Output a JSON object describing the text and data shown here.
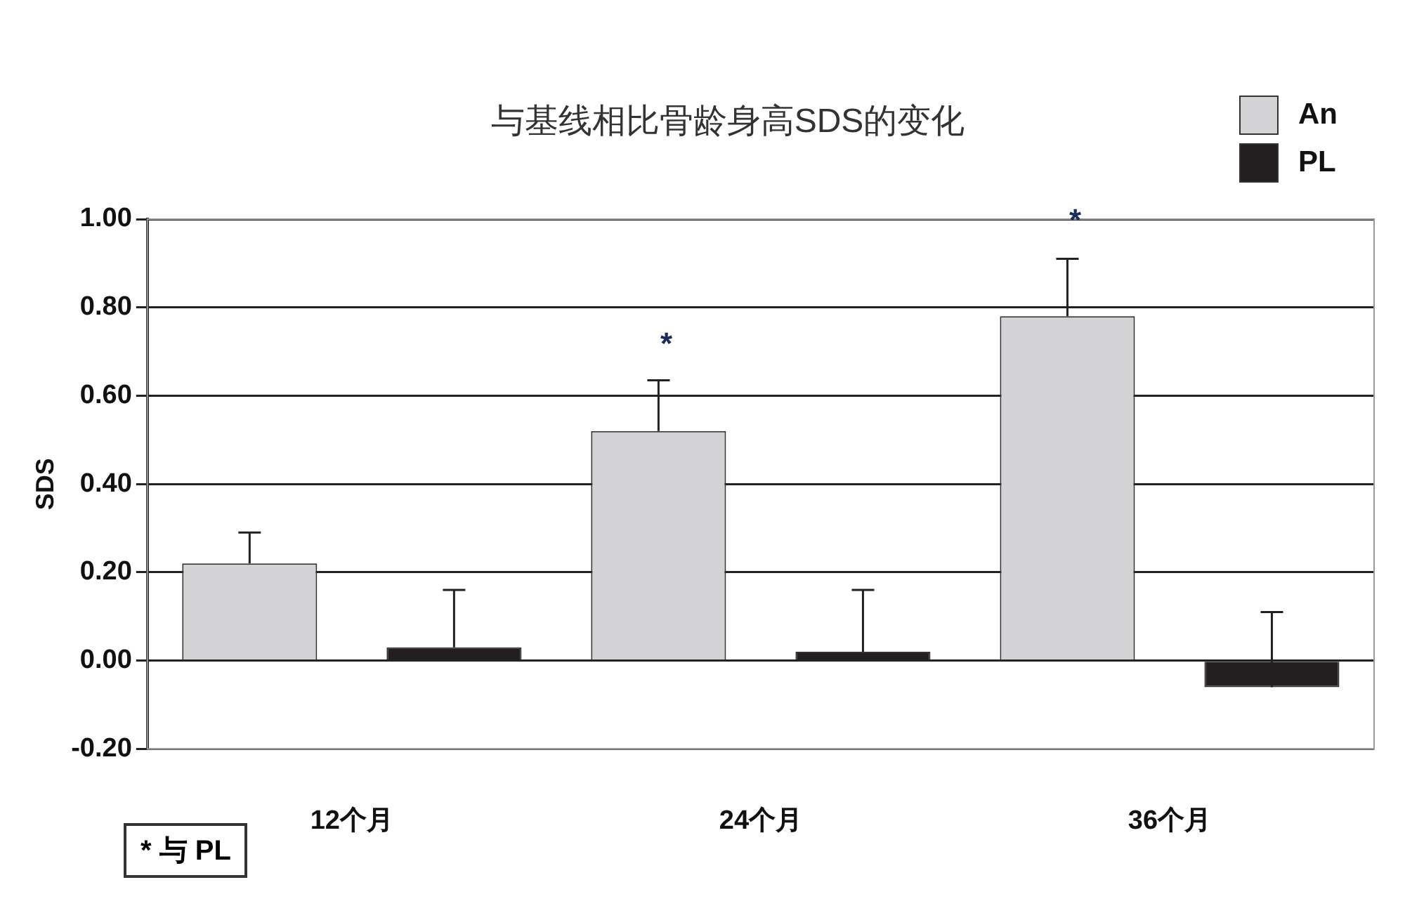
{
  "chart_data": {
    "type": "bar",
    "title": "与基线相比骨龄身高SDS的变化",
    "ylabel": "SDS",
    "categories": [
      "12个月",
      "24个月",
      "36个月"
    ],
    "series": [
      {
        "name": "An",
        "color": "#d3d3d5",
        "values": [
          0.22,
          0.52,
          0.78
        ],
        "errors": [
          [
            0.22,
            0.29
          ],
          [
            0.52,
            0.635
          ],
          [
            0.78,
            0.91
          ]
        ]
      },
      {
        "name": "PL",
        "color": "#231f20",
        "values": [
          0.03,
          0.02,
          -0.06
        ],
        "errors": [
          [
            0.03,
            0.16
          ],
          [
            0.02,
            0.16
          ],
          [
            -0.06,
            0.11
          ]
        ]
      }
    ],
    "ylim": [
      -0.2,
      1.0
    ],
    "yticks": [
      {
        "value": -0.2,
        "label": "-0.20"
      },
      {
        "value": 0,
        "label": "0.00"
      },
      {
        "value": 0.2,
        "label": "0.20"
      },
      {
        "value": 0.4,
        "label": "0.40"
      },
      {
        "value": 0.6,
        "label": "0.60"
      },
      {
        "value": 0.8,
        "label": "0.80"
      },
      {
        "value": 1.0,
        "label": "1.00"
      }
    ],
    "grid": "y",
    "legend": "top right",
    "annotations": [
      "*",
      "*",
      "* 与 PL"
    ]
  }
}
